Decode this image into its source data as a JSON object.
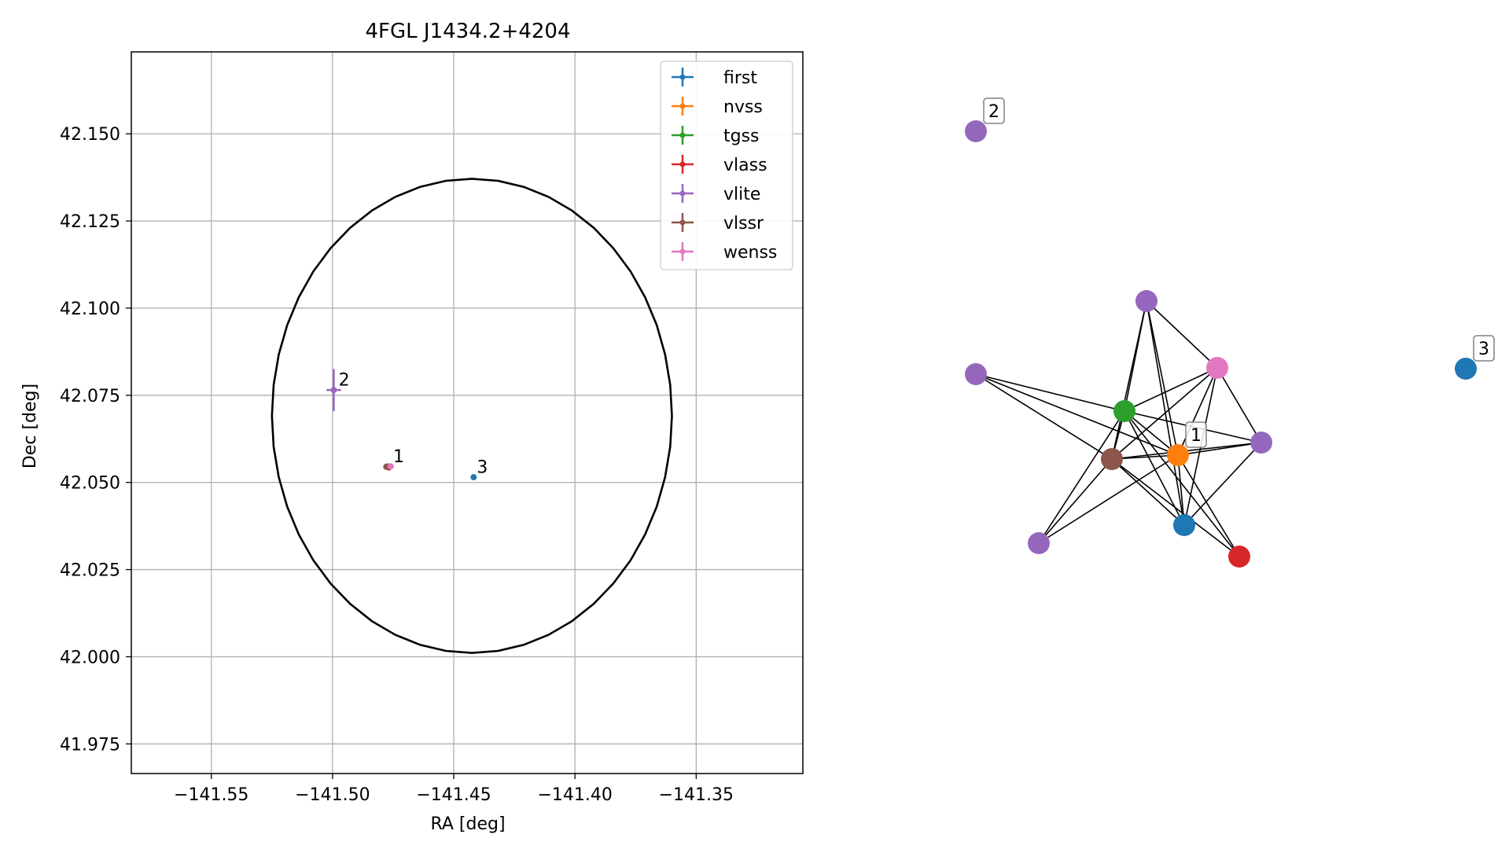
{
  "chart_data": [
    {
      "type": "scatter",
      "title": "4FGL J1434.2+4204",
      "xlabel": "RA [deg]",
      "ylabel": "Dec [deg]",
      "xlim": [
        -141.583,
        -141.306
      ],
      "ylim": [
        41.9665,
        42.1735
      ],
      "xticks": [
        -141.55,
        -141.5,
        -141.45,
        -141.4,
        -141.35
      ],
      "xtick_labels": [
        "−141.55",
        "−141.50",
        "−141.45",
        "−141.40",
        "−141.35"
      ],
      "yticks": [
        41.975,
        42.0,
        42.025,
        42.05,
        42.075,
        42.1,
        42.125,
        42.15
      ],
      "ytick_labels": [
        "41.975",
        "42.000",
        "42.025",
        "42.050",
        "42.075",
        "42.100",
        "42.125",
        "42.150"
      ],
      "grid": true,
      "legend_position": "top-right",
      "ellipse": {
        "center": [
          -141.4425,
          42.0691
        ],
        "semi_axis_ra": 0.0825,
        "semi_axis_dec": 0.068,
        "color": "#000000"
      },
      "series": [
        {
          "name": "first",
          "color": "#1f77b4",
          "points": [
            {
              "x": -141.4418,
              "y": 42.0515,
              "xerr": 0.0005,
              "yerr": 0.0005
            }
          ]
        },
        {
          "name": "nvss",
          "color": "#ff7f0e",
          "points": [
            {
              "x": -141.4765,
              "y": 42.0545,
              "xerr": 0.0005,
              "yerr": 0.0005
            }
          ]
        },
        {
          "name": "tgss",
          "color": "#2ca02c",
          "points": [
            {
              "x": -141.477,
              "y": 42.0545,
              "xerr": 0.0005,
              "yerr": 0.0005
            }
          ]
        },
        {
          "name": "vlass",
          "color": "#d62728",
          "points": [
            {
              "x": -141.4768,
              "y": 42.0543,
              "xerr": 0.0003,
              "yerr": 0.0003
            }
          ]
        },
        {
          "name": "vlite",
          "color": "#9467bd",
          "points": [
            {
              "x": -141.4995,
              "y": 42.0765,
              "xerr": 0.003,
              "yerr": 0.006
            },
            {
              "x": -141.4772,
              "y": 42.0546,
              "xerr": 0.0005,
              "yerr": 0.0005
            }
          ]
        },
        {
          "name": "vlssr",
          "color": "#8c564b",
          "points": [
            {
              "x": -141.4778,
              "y": 42.0545,
              "xerr": 0.0005,
              "yerr": 0.0005
            }
          ]
        },
        {
          "name": "wenss",
          "color": "#e377c2",
          "points": [
            {
              "x": -141.476,
              "y": 42.0546,
              "xerr": 0.0005,
              "yerr": 0.0005
            }
          ]
        }
      ],
      "annotations": [
        {
          "text": "1",
          "x": -141.475,
          "y": 42.0558
        },
        {
          "text": "2",
          "x": -141.4975,
          "y": 42.0778
        },
        {
          "text": "3",
          "x": -141.4405,
          "y": 42.0528
        }
      ]
    },
    {
      "type": "network",
      "nodes": [
        {
          "id": "n_vlite_a",
          "color": "#9467bd"
        },
        {
          "id": "n_vlite_b",
          "color": "#9467bd"
        },
        {
          "id": "n_wenss",
          "color": "#e377c2"
        },
        {
          "id": "n_tgss",
          "color": "#2ca02c"
        },
        {
          "id": "n_nvss",
          "color": "#ff7f0e"
        },
        {
          "id": "n_vlite_c",
          "color": "#9467bd"
        },
        {
          "id": "n_vlssr",
          "color": "#8c564b"
        },
        {
          "id": "n_first",
          "color": "#1f77b4"
        },
        {
          "id": "n_vlite_d",
          "color": "#9467bd"
        },
        {
          "id": "n_vlass",
          "color": "#d62728"
        },
        {
          "id": "n_vlite_2",
          "color": "#9467bd"
        },
        {
          "id": "n_first_3",
          "color": "#1f77b4"
        }
      ],
      "edges": [
        [
          "n_vlite_a",
          "n_tgss"
        ],
        [
          "n_vlite_a",
          "n_vlssr"
        ],
        [
          "n_vlite_a",
          "n_nvss"
        ],
        [
          "n_vlite_a",
          "n_first"
        ],
        [
          "n_vlite_a",
          "n_wenss"
        ],
        [
          "n_vlite_b",
          "n_tgss"
        ],
        [
          "n_vlite_b",
          "n_vlssr"
        ],
        [
          "n_vlite_b",
          "n_nvss"
        ],
        [
          "n_wenss",
          "n_tgss"
        ],
        [
          "n_wenss",
          "n_vlssr"
        ],
        [
          "n_wenss",
          "n_nvss"
        ],
        [
          "n_wenss",
          "n_first"
        ],
        [
          "n_wenss",
          "n_vlite_c"
        ],
        [
          "n_tgss",
          "n_vlite_c"
        ],
        [
          "n_tgss",
          "n_nvss"
        ],
        [
          "n_tgss",
          "n_vlssr"
        ],
        [
          "n_tgss",
          "n_first"
        ],
        [
          "n_tgss",
          "n_vlass"
        ],
        [
          "n_tgss",
          "n_vlite_d"
        ],
        [
          "n_nvss",
          "n_vlite_c"
        ],
        [
          "n_nvss",
          "n_vlssr"
        ],
        [
          "n_nvss",
          "n_first"
        ],
        [
          "n_nvss",
          "n_vlass"
        ],
        [
          "n_nvss",
          "n_vlite_d"
        ],
        [
          "n_vlssr",
          "n_vlite_c"
        ],
        [
          "n_vlssr",
          "n_first"
        ],
        [
          "n_vlssr",
          "n_vlass"
        ],
        [
          "n_vlssr",
          "n_vlite_d"
        ],
        [
          "n_first",
          "n_vlite_c"
        ]
      ],
      "labels": [
        {
          "text": "1",
          "node": "n_nvss"
        },
        {
          "text": "2",
          "node": "n_vlite_2"
        },
        {
          "text": "3",
          "node": "n_first_3"
        }
      ]
    }
  ]
}
